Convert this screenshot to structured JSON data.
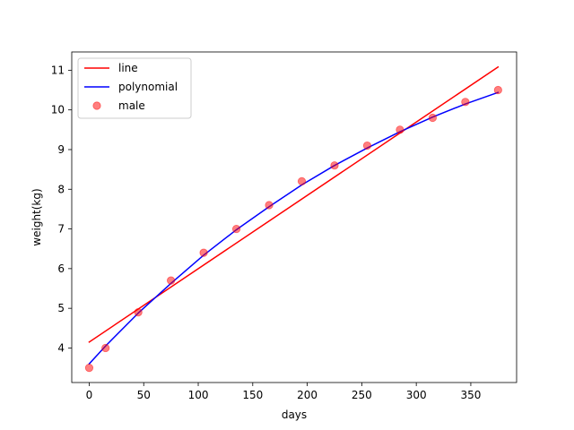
{
  "chart_data": {
    "type": "line",
    "title": "",
    "xlabel": "days",
    "ylabel": "weight(kg)",
    "xlim": [
      -16,
      392
    ],
    "ylim": [
      3.13,
      11.46
    ],
    "x_ticks": [
      0,
      50,
      100,
      150,
      200,
      250,
      300,
      350
    ],
    "y_ticks": [
      4,
      5,
      6,
      7,
      8,
      9,
      10,
      11
    ],
    "grid": false,
    "legend_position": "top-left",
    "series": [
      {
        "name": "line",
        "kind": "line",
        "color": "#ff0000",
        "x": [
          0,
          375
        ],
        "y": [
          4.15,
          11.08
        ]
      },
      {
        "name": "polynomial",
        "kind": "line",
        "color": "#0000ff",
        "x": [
          0,
          15,
          45,
          75,
          105,
          135,
          165,
          195,
          225,
          255,
          285,
          315,
          345,
          375
        ],
        "y": [
          3.6,
          4.05,
          4.88,
          5.63,
          6.34,
          6.98,
          7.56,
          8.11,
          8.6,
          9.04,
          9.45,
          9.82,
          10.15,
          10.44
        ]
      },
      {
        "name": "male",
        "kind": "scatter",
        "color": "#ff0000",
        "alpha": 0.5,
        "x": [
          0,
          15,
          45,
          75,
          105,
          135,
          165,
          195,
          225,
          255,
          285,
          315,
          345,
          375
        ],
        "y": [
          3.5,
          4.0,
          4.9,
          5.7,
          6.4,
          7.0,
          7.6,
          8.2,
          8.6,
          9.1,
          9.5,
          9.8,
          10.2,
          10.5
        ]
      }
    ]
  }
}
